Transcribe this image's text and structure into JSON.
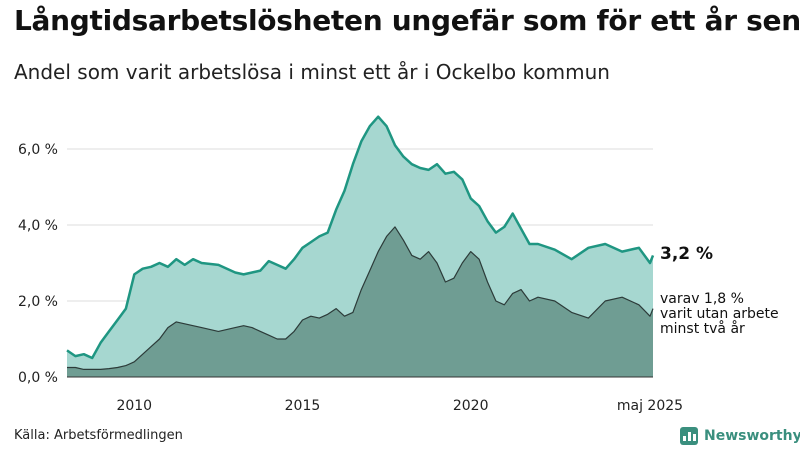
{
  "header": {
    "title": "Långtidsarbetslösheten ungefär som för ett år sen",
    "subtitle": "Andel som varit arbetslösa i minst ett år i Ockelbo kommun"
  },
  "footer": {
    "source": "Källa: Arbetsförmedlingen",
    "brand": "Newsworthy"
  },
  "annotations": {
    "total_value": "3,2 %",
    "sub_line1": "varav 1,8 %",
    "sub_line2": "varit utan arbete",
    "sub_line3": "minst två år"
  },
  "colors": {
    "total_line": "#1f9682",
    "total_fill": "#a6d7d0",
    "sub_fill": "#6f9d93",
    "sub_line": "#2c3b39",
    "grid": "#dddddd",
    "brand": "#3a8f7e"
  },
  "chart_data": {
    "type": "area",
    "xlim": [
      2008.0,
      2025.42
    ],
    "ylim": [
      0,
      6.0
    ],
    "y_ticks": [
      {
        "value": 0,
        "label": "0,0 %"
      },
      {
        "value": 2,
        "label": "2,0 %"
      },
      {
        "value": 4,
        "label": "4,0 %"
      },
      {
        "value": 6,
        "label": "6,0 %"
      }
    ],
    "x_ticks": [
      {
        "value": 2010,
        "label": "2010"
      },
      {
        "value": 2015,
        "label": "2015"
      },
      {
        "value": 2020,
        "label": "2020"
      },
      {
        "value": 2025.33,
        "label": "maj 2025"
      }
    ],
    "grid": true,
    "series": [
      {
        "key": "total",
        "x": [
          2008.0,
          2008.25,
          2008.5,
          2008.75,
          2009.0,
          2009.25,
          2009.5,
          2009.75,
          2010.0,
          2010.25,
          2010.5,
          2010.75,
          2011.0,
          2011.25,
          2011.5,
          2011.75,
          2012.0,
          2012.5,
          2013.0,
          2013.25,
          2013.5,
          2013.75,
          2014.0,
          2014.25,
          2014.5,
          2014.75,
          2015.0,
          2015.25,
          2015.5,
          2015.75,
          2016.0,
          2016.25,
          2016.5,
          2016.75,
          2017.0,
          2017.25,
          2017.5,
          2017.75,
          2018.0,
          2018.25,
          2018.5,
          2018.75,
          2019.0,
          2019.25,
          2019.5,
          2019.75,
          2020.0,
          2020.25,
          2020.5,
          2020.75,
          2021.0,
          2021.25,
          2021.5,
          2021.75,
          2022.0,
          2022.5,
          2023.0,
          2023.5,
          2024.0,
          2024.5,
          2025.0,
          2025.33,
          2025.42
        ],
        "values": [
          0.7,
          0.55,
          0.6,
          0.5,
          0.9,
          1.2,
          1.5,
          1.8,
          2.7,
          2.85,
          2.9,
          3.0,
          2.9,
          3.1,
          2.95,
          3.1,
          3.0,
          2.95,
          2.75,
          2.7,
          2.75,
          2.8,
          3.05,
          2.95,
          2.85,
          3.1,
          3.4,
          3.55,
          3.7,
          3.8,
          4.4,
          4.9,
          5.6,
          6.2,
          6.6,
          6.85,
          6.6,
          6.1,
          5.8,
          5.6,
          5.5,
          5.45,
          5.6,
          5.35,
          5.4,
          5.2,
          4.7,
          4.5,
          4.1,
          3.8,
          3.95,
          4.3,
          3.9,
          3.5,
          3.5,
          3.35,
          3.1,
          3.4,
          3.5,
          3.3,
          3.4,
          3.0,
          3.2
        ]
      },
      {
        "key": "sub",
        "x": [
          2008.0,
          2008.25,
          2008.5,
          2008.75,
          2009.0,
          2009.25,
          2009.5,
          2009.75,
          2010.0,
          2010.25,
          2010.5,
          2010.75,
          2011.0,
          2011.25,
          2011.5,
          2011.75,
          2012.0,
          2012.5,
          2013.0,
          2013.25,
          2013.5,
          2013.75,
          2014.0,
          2014.25,
          2014.5,
          2014.75,
          2015.0,
          2015.25,
          2015.5,
          2015.75,
          2016.0,
          2016.25,
          2016.5,
          2016.75,
          2017.0,
          2017.25,
          2017.5,
          2017.75,
          2018.0,
          2018.25,
          2018.5,
          2018.75,
          2019.0,
          2019.25,
          2019.5,
          2019.75,
          2020.0,
          2020.25,
          2020.5,
          2020.75,
          2021.0,
          2021.25,
          2021.5,
          2021.75,
          2022.0,
          2022.5,
          2023.0,
          2023.5,
          2024.0,
          2024.5,
          2025.0,
          2025.33,
          2025.42
        ],
        "values": [
          0.25,
          0.25,
          0.2,
          0.2,
          0.2,
          0.22,
          0.25,
          0.3,
          0.4,
          0.6,
          0.8,
          1.0,
          1.3,
          1.45,
          1.4,
          1.35,
          1.3,
          1.2,
          1.3,
          1.35,
          1.3,
          1.2,
          1.1,
          1.0,
          1.0,
          1.2,
          1.5,
          1.6,
          1.55,
          1.65,
          1.8,
          1.6,
          1.7,
          2.3,
          2.8,
          3.3,
          3.7,
          3.95,
          3.6,
          3.2,
          3.1,
          3.3,
          3.0,
          2.5,
          2.6,
          3.0,
          3.3,
          3.1,
          2.5,
          2.0,
          1.9,
          2.2,
          2.3,
          2.0,
          2.1,
          2.0,
          1.7,
          1.55,
          2.0,
          2.1,
          1.9,
          1.6,
          1.8
        ]
      }
    ]
  }
}
